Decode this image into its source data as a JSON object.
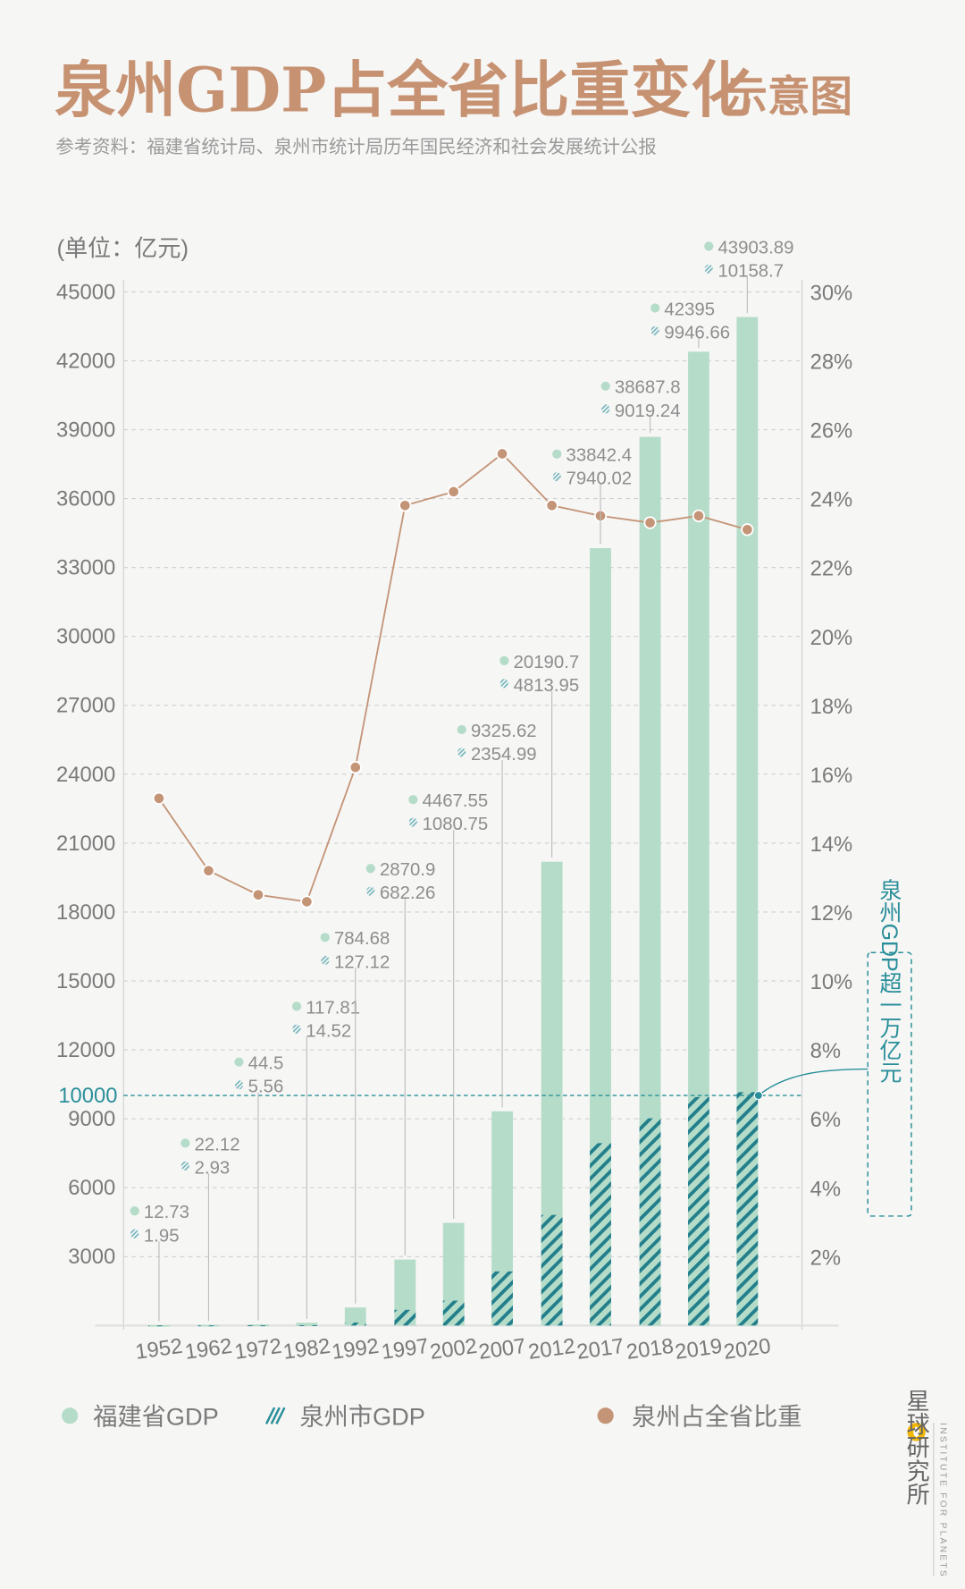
{
  "header": {
    "title_main": "泉州GDP占全省比重变化",
    "title_suffix": "示意图",
    "source": "参考资料：福建省统计局、泉州市统计局历年国民经济和社会发展统计公报"
  },
  "colors": {
    "fujian": "#b5dcc9",
    "quanzhou": "#227f8b",
    "share": "#c49477",
    "title": "#c69272",
    "highlight": "#2a8f9a"
  },
  "annotation": {
    "text": "泉州GDP超一万亿元",
    "threshold_label": "10000"
  },
  "legend": [
    {
      "label": "福建省GDP",
      "icon": "mint-dot-icon"
    },
    {
      "label": "泉州市GDP",
      "icon": "hatch-icon"
    },
    {
      "label": "泉州占全省比重",
      "icon": "brown-dot-icon"
    }
  ],
  "logo": {
    "name": "星球研究所",
    "english": "INSTITUTE FOR PLANETS"
  },
  "chart_data": {
    "type": "bar",
    "unit_label": "(单位：亿元)",
    "categories": [
      "1952",
      "1962",
      "1972",
      "1982",
      "1992",
      "1997",
      "2002",
      "2007",
      "2012",
      "2017",
      "2018",
      "2019",
      "2020"
    ],
    "series": [
      {
        "name": "福建省GDP",
        "type": "bar",
        "axis": "left",
        "values": [
          12.73,
          22.12,
          44.5,
          117.81,
          784.68,
          2870.9,
          4467.55,
          9325.62,
          20190.7,
          33842.4,
          38687.8,
          42395,
          43903.89
        ]
      },
      {
        "name": "泉州市GDP",
        "type": "bar-overlay-hatched",
        "axis": "left",
        "values": [
          1.95,
          2.93,
          5.56,
          14.52,
          127.12,
          682.26,
          1080.75,
          2354.99,
          4813.95,
          7940.02,
          9019.24,
          9946.66,
          10158.7
        ]
      },
      {
        "name": "泉州占全省比重",
        "type": "line",
        "axis": "right",
        "unit": "%",
        "values": [
          15.3,
          13.2,
          12.5,
          12.3,
          16.2,
          23.8,
          24.2,
          25.3,
          23.8,
          23.5,
          23.3,
          23.5,
          23.1
        ]
      }
    ],
    "y_left": {
      "range": [
        0,
        45000
      ],
      "ticks": [
        "3000",
        "6000",
        "9000",
        "12000",
        "15000",
        "18000",
        "21000",
        "24000",
        "27000",
        "30000",
        "33000",
        "36000",
        "39000",
        "42000",
        "45000"
      ]
    },
    "y_right": {
      "range": [
        0,
        30
      ],
      "ticks": [
        "2%",
        "4%",
        "6%",
        "8%",
        "10%",
        "12%",
        "14%",
        "16%",
        "18%",
        "20%",
        "22%",
        "24%",
        "26%",
        "28%",
        "30%"
      ]
    },
    "threshold_line": 10000,
    "grid": true,
    "legend_position": "bottom"
  }
}
